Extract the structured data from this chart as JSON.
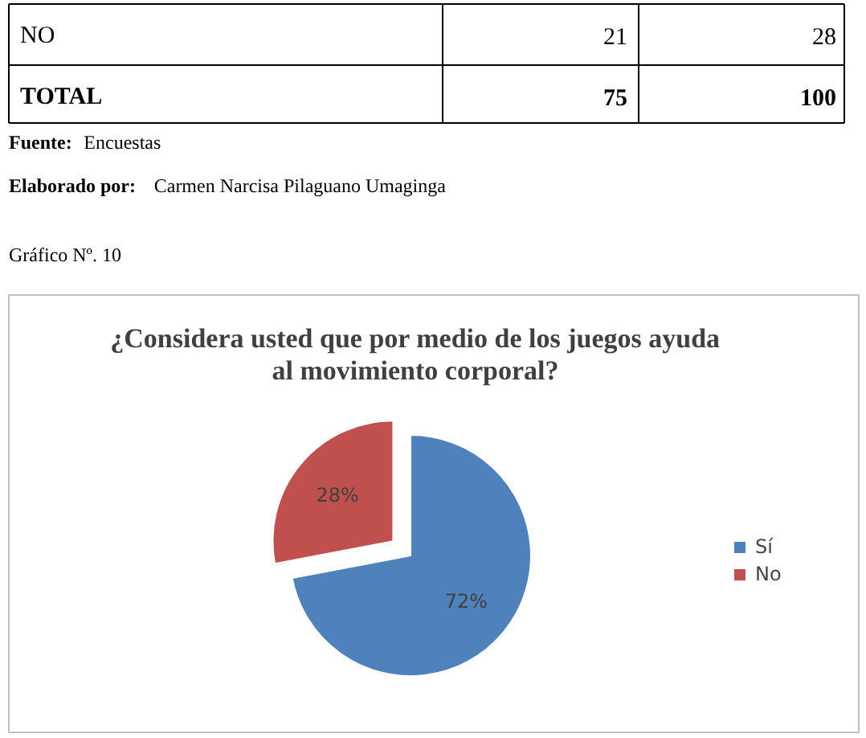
{
  "chart_data": {
    "type": "pie",
    "title": "¿Considera usted que por medio de los juegos ayuda\nal movimiento corporal?",
    "categories": [
      "Sí",
      "No"
    ],
    "values": [
      72,
      28
    ],
    "colors": [
      "#4f81bd",
      "#c0504d"
    ],
    "value_labels": [
      "72%",
      "28%"
    ],
    "legend": "right",
    "annotations": [
      "NO",
      "21",
      "28",
      "TOTAL",
      "75",
      "100",
      "Fuente: Encuestas",
      "Elaborado por: Carmen Narcisa Pilaguano Umaginga",
      "Gráfico Nº.  10"
    ]
  }
}
